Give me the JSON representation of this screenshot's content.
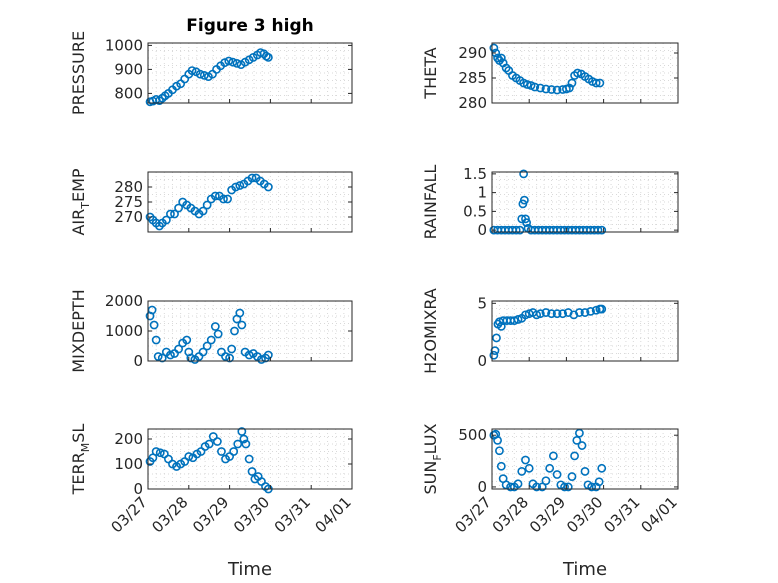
{
  "figure": {
    "title": "Figure 3 high",
    "background": "#ffffff"
  },
  "style": {
    "marker_color": "#0072BD",
    "axis_color": "#262626",
    "grid_color": "#d9d9d9"
  },
  "chart_data": [
    {
      "id": "pressure",
      "type": "scatter",
      "marker": "circle",
      "ylabel": "PRESSURE",
      "ylim": [
        760,
        1010
      ],
      "yticks": [
        800,
        900,
        1000
      ],
      "xlim": [
        0,
        5
      ],
      "xtick_labels": [],
      "grid": "dotted",
      "show_title": true,
      "points": [
        [
          0.05,
          765
        ],
        [
          0.12,
          768
        ],
        [
          0.2,
          775
        ],
        [
          0.28,
          770
        ],
        [
          0.35,
          780
        ],
        [
          0.42,
          790
        ],
        [
          0.5,
          800
        ],
        [
          0.6,
          815
        ],
        [
          0.7,
          830
        ],
        [
          0.8,
          840
        ],
        [
          0.9,
          860
        ],
        [
          1.0,
          880
        ],
        [
          1.08,
          895
        ],
        [
          1.18,
          890
        ],
        [
          1.28,
          880
        ],
        [
          1.38,
          875
        ],
        [
          1.48,
          870
        ],
        [
          1.58,
          880
        ],
        [
          1.68,
          900
        ],
        [
          1.78,
          915
        ],
        [
          1.88,
          928
        ],
        [
          1.98,
          935
        ],
        [
          2.08,
          930
        ],
        [
          2.18,
          925
        ],
        [
          2.28,
          920
        ],
        [
          2.38,
          930
        ],
        [
          2.48,
          940
        ],
        [
          2.58,
          950
        ],
        [
          2.68,
          960
        ],
        [
          2.76,
          970
        ],
        [
          2.84,
          965
        ],
        [
          2.9,
          955
        ],
        [
          2.95,
          950
        ]
      ]
    },
    {
      "id": "theta",
      "type": "scatter",
      "marker": "circle",
      "ylabel": "THETA",
      "ylim": [
        280,
        292
      ],
      "yticks": [
        280,
        285,
        290
      ],
      "xlim": [
        0,
        5
      ],
      "xtick_labels": [],
      "grid": "dotted",
      "points": [
        [
          0.05,
          291
        ],
        [
          0.1,
          290
        ],
        [
          0.15,
          289
        ],
        [
          0.2,
          288.5
        ],
        [
          0.25,
          289
        ],
        [
          0.3,
          288
        ],
        [
          0.38,
          287
        ],
        [
          0.45,
          286.5
        ],
        [
          0.55,
          285.5
        ],
        [
          0.65,
          285
        ],
        [
          0.75,
          284.5
        ],
        [
          0.85,
          284
        ],
        [
          0.95,
          283.7
        ],
        [
          1.05,
          283.5
        ],
        [
          1.15,
          283.2
        ],
        [
          1.3,
          283
        ],
        [
          1.45,
          282.8
        ],
        [
          1.6,
          282.7
        ],
        [
          1.75,
          282.6
        ],
        [
          1.9,
          282.7
        ],
        [
          2.0,
          282.8
        ],
        [
          2.08,
          283
        ],
        [
          2.15,
          284
        ],
        [
          2.22,
          285.5
        ],
        [
          2.3,
          286
        ],
        [
          2.4,
          285.8
        ],
        [
          2.5,
          285.3
        ],
        [
          2.6,
          284.8
        ],
        [
          2.7,
          284.3
        ],
        [
          2.8,
          284
        ],
        [
          2.9,
          284
        ]
      ]
    },
    {
      "id": "air_temp",
      "type": "scatter",
      "marker": "circle",
      "ylabel": "AIR",
      "ylabel_sub": "T",
      "ylabel_rest": "EMP",
      "ylim": [
        265,
        285
      ],
      "yticks": [
        270,
        275,
        280
      ],
      "xlim": [
        0,
        5
      ],
      "xtick_labels": [],
      "grid": "dotted",
      "points": [
        [
          0.05,
          270
        ],
        [
          0.12,
          269
        ],
        [
          0.2,
          268
        ],
        [
          0.28,
          267
        ],
        [
          0.35,
          268
        ],
        [
          0.45,
          269
        ],
        [
          0.55,
          271
        ],
        [
          0.65,
          271
        ],
        [
          0.75,
          273
        ],
        [
          0.85,
          275
        ],
        [
          0.95,
          274
        ],
        [
          1.05,
          273
        ],
        [
          1.15,
          272
        ],
        [
          1.25,
          271
        ],
        [
          1.35,
          272
        ],
        [
          1.45,
          274
        ],
        [
          1.55,
          276
        ],
        [
          1.65,
          277
        ],
        [
          1.75,
          277
        ],
        [
          1.85,
          276
        ],
        [
          1.95,
          276
        ],
        [
          2.05,
          279
        ],
        [
          2.15,
          280
        ],
        [
          2.25,
          280.5
        ],
        [
          2.35,
          281
        ],
        [
          2.45,
          282
        ],
        [
          2.55,
          283
        ],
        [
          2.65,
          283
        ],
        [
          2.75,
          282
        ],
        [
          2.85,
          281
        ],
        [
          2.95,
          280
        ]
      ]
    },
    {
      "id": "rainfall",
      "type": "scatter",
      "marker": "circle",
      "ylabel": "RAINFALL",
      "ylim": [
        -0.05,
        1.55
      ],
      "yticks": [
        0,
        0.5,
        1,
        1.5
      ],
      "ytick_labels": [
        "0",
        "0.5",
        "1",
        "1.5"
      ],
      "xlim": [
        0,
        5
      ],
      "xtick_labels": [],
      "grid": "dotted",
      "points": [
        [
          0.05,
          0
        ],
        [
          0.15,
          0
        ],
        [
          0.25,
          0
        ],
        [
          0.35,
          0
        ],
        [
          0.45,
          0
        ],
        [
          0.55,
          0
        ],
        [
          0.65,
          0
        ],
        [
          0.75,
          0
        ],
        [
          0.8,
          0.3
        ],
        [
          0.83,
          0.7
        ],
        [
          0.85,
          1.5
        ],
        [
          0.87,
          0.8
        ],
        [
          0.9,
          0.3
        ],
        [
          0.93,
          0.2
        ],
        [
          0.97,
          0.05
        ],
        [
          1.05,
          0
        ],
        [
          1.15,
          0
        ],
        [
          1.25,
          0
        ],
        [
          1.35,
          0
        ],
        [
          1.45,
          0
        ],
        [
          1.55,
          0
        ],
        [
          1.65,
          0
        ],
        [
          1.75,
          0
        ],
        [
          1.85,
          0
        ],
        [
          1.95,
          0
        ],
        [
          2.05,
          0
        ],
        [
          2.15,
          0
        ],
        [
          2.25,
          0
        ],
        [
          2.35,
          0
        ],
        [
          2.45,
          0
        ],
        [
          2.55,
          0
        ],
        [
          2.65,
          0
        ],
        [
          2.75,
          0
        ],
        [
          2.85,
          0
        ],
        [
          2.95,
          0
        ]
      ]
    },
    {
      "id": "mixdepth",
      "type": "scatter",
      "marker": "circle",
      "ylabel": "MIXDEPTH",
      "ylim": [
        0,
        2000
      ],
      "yticks": [
        0,
        1000,
        2000
      ],
      "xlim": [
        0,
        5
      ],
      "xtick_labels": [],
      "grid": "dotted",
      "points": [
        [
          0.05,
          1500
        ],
        [
          0.1,
          1700
        ],
        [
          0.15,
          1200
        ],
        [
          0.2,
          700
        ],
        [
          0.25,
          150
        ],
        [
          0.35,
          100
        ],
        [
          0.45,
          300
        ],
        [
          0.55,
          200
        ],
        [
          0.65,
          250
        ],
        [
          0.75,
          400
        ],
        [
          0.85,
          600
        ],
        [
          0.95,
          700
        ],
        [
          1.0,
          300
        ],
        [
          1.05,
          100
        ],
        [
          1.15,
          50
        ],
        [
          1.25,
          150
        ],
        [
          1.35,
          300
        ],
        [
          1.45,
          500
        ],
        [
          1.55,
          700
        ],
        [
          1.65,
          1150
        ],
        [
          1.72,
          900
        ],
        [
          1.8,
          300
        ],
        [
          1.9,
          150
        ],
        [
          2.0,
          100
        ],
        [
          2.05,
          400
        ],
        [
          2.12,
          1000
        ],
        [
          2.18,
          1400
        ],
        [
          2.25,
          1600
        ],
        [
          2.3,
          1200
        ],
        [
          2.38,
          300
        ],
        [
          2.48,
          200
        ],
        [
          2.58,
          250
        ],
        [
          2.68,
          150
        ],
        [
          2.78,
          50
        ],
        [
          2.88,
          100
        ],
        [
          2.95,
          200
        ]
      ]
    },
    {
      "id": "h2omixra",
      "type": "scatter",
      "marker": "circle",
      "ylabel": "H2OMIXRA",
      "ylim": [
        0,
        5.2
      ],
      "yticks": [
        0,
        5
      ],
      "xlim": [
        0,
        5
      ],
      "xtick_labels": [],
      "grid": "dotted",
      "points": [
        [
          0.05,
          0.5
        ],
        [
          0.08,
          0.9
        ],
        [
          0.12,
          2.0
        ],
        [
          0.16,
          3.2
        ],
        [
          0.2,
          3.4
        ],
        [
          0.25,
          3.0
        ],
        [
          0.3,
          3.5
        ],
        [
          0.4,
          3.5
        ],
        [
          0.5,
          3.5
        ],
        [
          0.6,
          3.5
        ],
        [
          0.7,
          3.6
        ],
        [
          0.8,
          3.7
        ],
        [
          0.9,
          4.0
        ],
        [
          1.0,
          4.1
        ],
        [
          1.1,
          4.2
        ],
        [
          1.2,
          4.0
        ],
        [
          1.3,
          4.1
        ],
        [
          1.45,
          4.2
        ],
        [
          1.6,
          4.1
        ],
        [
          1.75,
          4.1
        ],
        [
          1.9,
          4.1
        ],
        [
          2.05,
          4.2
        ],
        [
          2.2,
          4.0
        ],
        [
          2.35,
          4.2
        ],
        [
          2.5,
          4.2
        ],
        [
          2.65,
          4.3
        ],
        [
          2.8,
          4.4
        ],
        [
          2.9,
          4.5
        ],
        [
          2.95,
          4.5
        ]
      ]
    },
    {
      "id": "terr_msl",
      "type": "scatter",
      "marker": "circle",
      "ylabel": "TERR",
      "ylabel_sub": "M",
      "ylabel_rest": "SL",
      "ylim": [
        0,
        240
      ],
      "yticks": [
        0,
        100,
        200
      ],
      "xlim": [
        0,
        5
      ],
      "xtick_labels": [
        "03/27",
        "03/28",
        "03/29",
        "03/30",
        "03/31",
        "04/01"
      ],
      "xlabel": "Time",
      "grid": "dotted",
      "points": [
        [
          0.05,
          110
        ],
        [
          0.12,
          125
        ],
        [
          0.2,
          150
        ],
        [
          0.3,
          145
        ],
        [
          0.4,
          140
        ],
        [
          0.5,
          120
        ],
        [
          0.6,
          100
        ],
        [
          0.7,
          90
        ],
        [
          0.8,
          100
        ],
        [
          0.9,
          110
        ],
        [
          1.0,
          130
        ],
        [
          1.1,
          125
        ],
        [
          1.2,
          140
        ],
        [
          1.3,
          150
        ],
        [
          1.4,
          170
        ],
        [
          1.5,
          180
        ],
        [
          1.6,
          210
        ],
        [
          1.7,
          190
        ],
        [
          1.8,
          150
        ],
        [
          1.9,
          120
        ],
        [
          2.0,
          130
        ],
        [
          2.1,
          150
        ],
        [
          2.2,
          180
        ],
        [
          2.3,
          230
        ],
        [
          2.35,
          200
        ],
        [
          2.4,
          180
        ],
        [
          2.48,
          120
        ],
        [
          2.55,
          70
        ],
        [
          2.62,
          40
        ],
        [
          2.7,
          50
        ],
        [
          2.78,
          30
        ],
        [
          2.88,
          10
        ],
        [
          2.95,
          0
        ]
      ]
    },
    {
      "id": "sun_flux",
      "type": "scatter",
      "marker": "circle",
      "ylabel": "SUN",
      "ylabel_sub": "F",
      "ylabel_rest": "LUX",
      "ylim": [
        -20,
        560
      ],
      "yticks": [
        0,
        500
      ],
      "xlim": [
        0,
        5
      ],
      "xtick_labels": [
        "03/27",
        "03/28",
        "03/29",
        "03/30",
        "03/31",
        "04/01"
      ],
      "xlabel": "Time",
      "grid": "dotted",
      "points": [
        [
          0.05,
          500
        ],
        [
          0.1,
          510
        ],
        [
          0.15,
          450
        ],
        [
          0.2,
          350
        ],
        [
          0.25,
          200
        ],
        [
          0.3,
          80
        ],
        [
          0.38,
          20
        ],
        [
          0.5,
          0
        ],
        [
          0.6,
          0
        ],
        [
          0.7,
          30
        ],
        [
          0.8,
          150
        ],
        [
          0.9,
          260
        ],
        [
          1.0,
          180
        ],
        [
          1.1,
          30
        ],
        [
          1.2,
          0
        ],
        [
          1.35,
          0
        ],
        [
          1.45,
          60
        ],
        [
          1.55,
          180
        ],
        [
          1.65,
          300
        ],
        [
          1.75,
          120
        ],
        [
          1.85,
          20
        ],
        [
          1.95,
          0
        ],
        [
          2.05,
          0
        ],
        [
          2.15,
          100
        ],
        [
          2.22,
          300
        ],
        [
          2.28,
          450
        ],
        [
          2.35,
          520
        ],
        [
          2.42,
          400
        ],
        [
          2.5,
          150
        ],
        [
          2.58,
          20
        ],
        [
          2.68,
          0
        ],
        [
          2.8,
          0
        ],
        [
          2.88,
          50
        ],
        [
          2.95,
          180
        ]
      ]
    }
  ]
}
